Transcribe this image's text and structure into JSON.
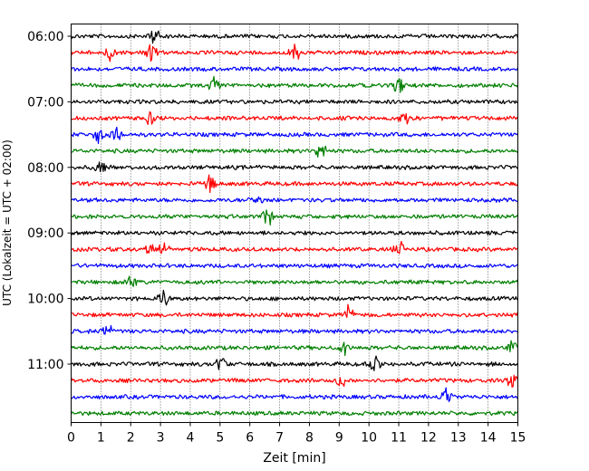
{
  "chart_data": {
    "type": "line",
    "title": "",
    "xlabel": "Zeit  [min]",
    "ylabel": "UTC (Lokalzeit = UTC + 02:00)",
    "xlim": [
      0,
      15
    ],
    "x_ticks": [
      "0",
      "1",
      "2",
      "3",
      "4",
      "5",
      "6",
      "7",
      "8",
      "9",
      "10",
      "11",
      "12",
      "13",
      "14",
      "15"
    ],
    "y_ticks": [
      "06:00",
      "07:00",
      "08:00",
      "09:00",
      "10:00",
      "11:00"
    ],
    "grid": "vertical dotted",
    "trace_interval_minutes": 15,
    "start_time": "06:00",
    "trace_colors": [
      "#000000",
      "#ff0000",
      "#0000ff",
      "#007f00"
    ],
    "traces": [
      {
        "start": "06:00",
        "color": "#000000",
        "events_min": [
          2.8
        ]
      },
      {
        "start": "06:15",
        "color": "#ff0000",
        "events_min": [
          1.3,
          2.7,
          7.5
        ]
      },
      {
        "start": "06:30",
        "color": "#0000ff",
        "events_min": []
      },
      {
        "start": "06:45",
        "color": "#007f00",
        "events_min": [
          4.8,
          11.0
        ]
      },
      {
        "start": "07:00",
        "color": "#000000",
        "events_min": []
      },
      {
        "start": "07:15",
        "color": "#ff0000",
        "events_min": [
          2.6,
          11.2
        ]
      },
      {
        "start": "07:30",
        "color": "#0000ff",
        "events_min": [
          0.9,
          1.5
        ]
      },
      {
        "start": "07:45",
        "color": "#007f00",
        "events_min": [
          8.4
        ]
      },
      {
        "start": "08:00",
        "color": "#000000",
        "events_min": [
          1.0
        ]
      },
      {
        "start": "08:15",
        "color": "#ff0000",
        "events_min": [
          4.7
        ]
      },
      {
        "start": "08:30",
        "color": "#0000ff",
        "events_min": [
          6.2
        ]
      },
      {
        "start": "08:45",
        "color": "#007f00",
        "events_min": [
          6.6
        ]
      },
      {
        "start": "09:00",
        "color": "#000000",
        "events_min": []
      },
      {
        "start": "09:15",
        "color": "#ff0000",
        "events_min": [
          2.6,
          3.1,
          11.0
        ]
      },
      {
        "start": "09:30",
        "color": "#0000ff",
        "events_min": []
      },
      {
        "start": "09:45",
        "color": "#007f00",
        "events_min": [
          2.0
        ]
      },
      {
        "start": "10:00",
        "color": "#000000",
        "events_min": [
          3.1
        ]
      },
      {
        "start": "10:15",
        "color": "#ff0000",
        "events_min": [
          9.3
        ]
      },
      {
        "start": "10:30",
        "color": "#0000ff",
        "events_min": [
          1.2
        ]
      },
      {
        "start": "10:45",
        "color": "#007f00",
        "events_min": [
          9.2,
          14.8
        ]
      },
      {
        "start": "11:00",
        "color": "#000000",
        "events_min": [
          5.0,
          10.2
        ]
      },
      {
        "start": "11:15",
        "color": "#ff0000",
        "events_min": [
          9.1,
          14.8
        ]
      },
      {
        "start": "11:30",
        "color": "#0000ff",
        "events_min": [
          12.6
        ]
      },
      {
        "start": "11:45",
        "color": "#007f00",
        "events_min": []
      }
    ]
  }
}
